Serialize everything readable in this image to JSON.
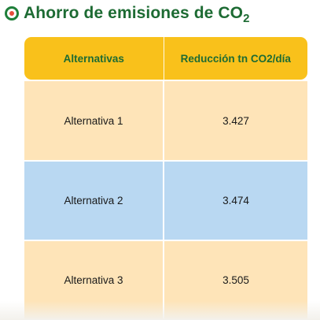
{
  "header": {
    "title_main": "Ahorro de emisiones de CO",
    "title_sub": "2"
  },
  "table": {
    "columns": [
      "Alternativas",
      "Reducción tn CO2/día"
    ],
    "rows": [
      {
        "alternativa": "Alternativa 1",
        "reduccion": "3.427"
      },
      {
        "alternativa": "Alternativa 2",
        "reduccion": "3.474"
      },
      {
        "alternativa": "Alternativa 3",
        "reduccion": "3.505"
      }
    ]
  },
  "colors": {
    "title_green": "#1d6b33",
    "header_yellow": "#f9c11b",
    "row_peach": "#fee4b8",
    "row_blue": "#b9d8f2",
    "bullet_ring": "#1f7f3a",
    "bullet_dot": "#e84d3c"
  }
}
